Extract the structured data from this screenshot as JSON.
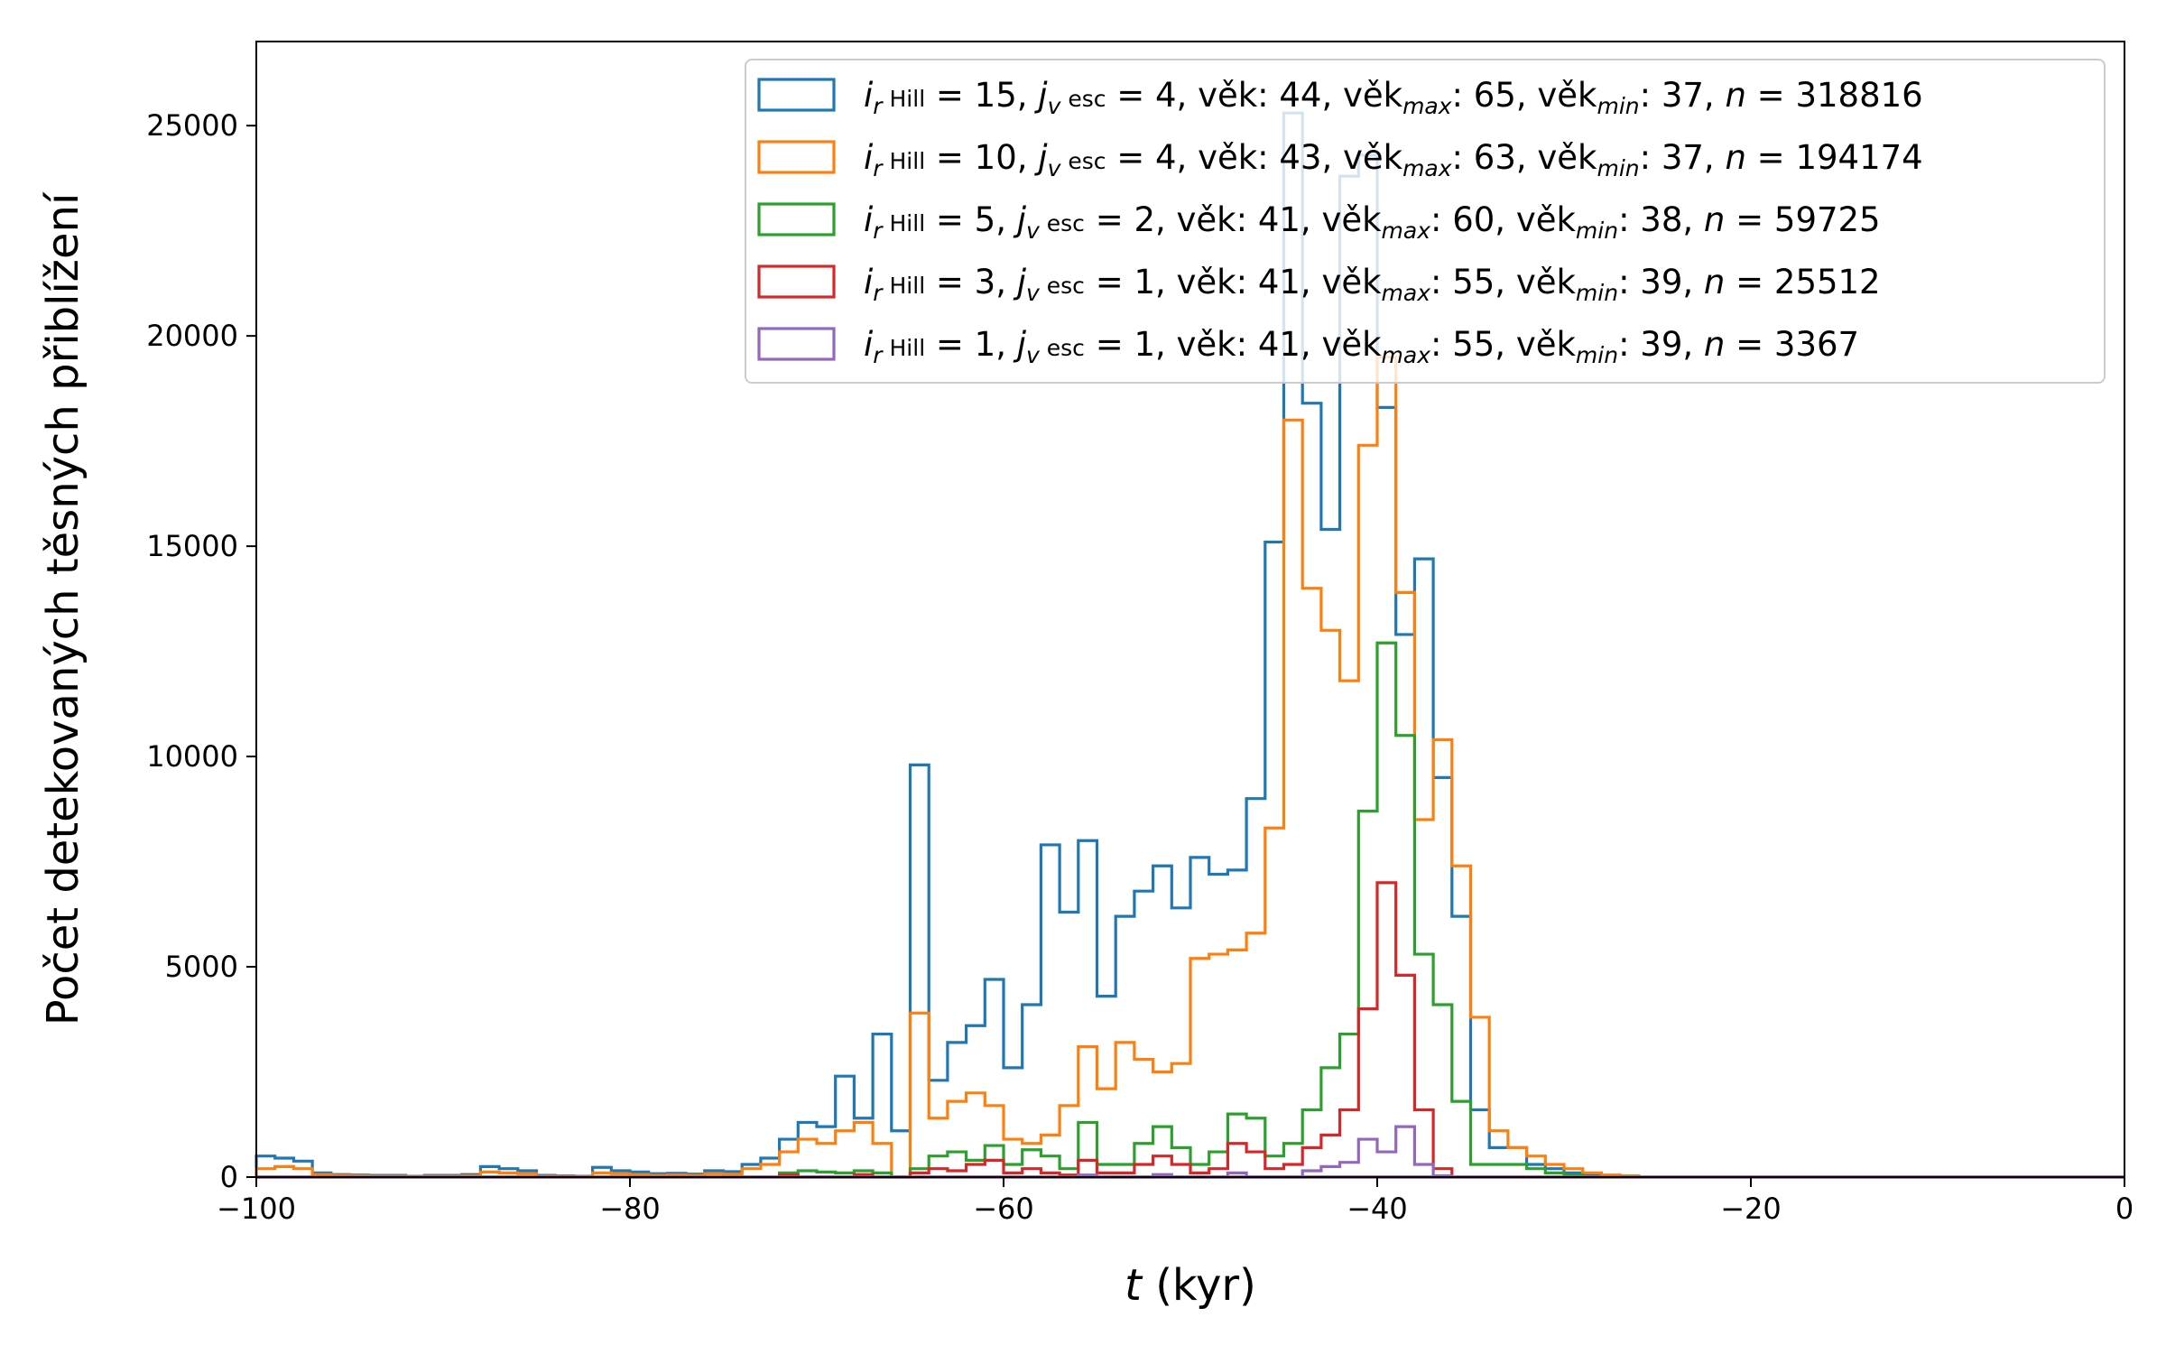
{
  "chart_data": {
    "type": "histogram",
    "xlabel": "t (kyr)",
    "ylabel": "Počet detekovaných těsných přiblížení",
    "xlim": [
      -100,
      0
    ],
    "ylim": [
      0,
      27000
    ],
    "x_ticks": [
      -100,
      -80,
      -60,
      -40,
      -20,
      0
    ],
    "x_tick_labels": [
      "−100",
      "−80",
      "−60",
      "−40",
      "−20",
      "0"
    ],
    "y_ticks": [
      0,
      5000,
      10000,
      15000,
      20000,
      25000
    ],
    "y_tick_labels": [
      "0",
      "5000",
      "10000",
      "15000",
      "20000",
      "25000"
    ],
    "grid": false,
    "legend_position": "top-right",
    "bin_width": 1,
    "series": [
      {
        "name": "i_rHill = 15, j_vesc = 4, věk: 44, věk_max: 65, věk_min: 37, n = 318816",
        "legend": {
          "i": "15",
          "j": "4",
          "vek": "44",
          "vek_max": "65",
          "vek_min": "37",
          "n": "318816"
        },
        "color": "#1f77b4",
        "bins": [
          [
            -100,
            500
          ],
          [
            -99,
            450
          ],
          [
            -98,
            380
          ],
          [
            -97,
            100
          ],
          [
            -96,
            60
          ],
          [
            -95,
            50
          ],
          [
            -94,
            40
          ],
          [
            -93,
            40
          ],
          [
            -92,
            20
          ],
          [
            -91,
            40
          ],
          [
            -90,
            40
          ],
          [
            -89,
            60
          ],
          [
            -88,
            250
          ],
          [
            -87,
            200
          ],
          [
            -86,
            150
          ],
          [
            -85,
            40
          ],
          [
            -84,
            30
          ],
          [
            -83,
            20
          ],
          [
            -82,
            230
          ],
          [
            -81,
            150
          ],
          [
            -80,
            120
          ],
          [
            -79,
            80
          ],
          [
            -78,
            90
          ],
          [
            -77,
            70
          ],
          [
            -76,
            150
          ],
          [
            -75,
            130
          ],
          [
            -74,
            300
          ],
          [
            -73,
            450
          ],
          [
            -72,
            900
          ],
          [
            -71,
            1300
          ],
          [
            -70,
            1200
          ],
          [
            -69,
            2400
          ],
          [
            -68,
            1400
          ],
          [
            -67,
            3400
          ],
          [
            -66,
            1100
          ],
          [
            -65,
            9800
          ],
          [
            -64,
            2300
          ],
          [
            -63,
            3200
          ],
          [
            -62,
            3600
          ],
          [
            -61,
            4700
          ],
          [
            -60,
            2600
          ],
          [
            -59,
            4100
          ],
          [
            -58,
            7900
          ],
          [
            -57,
            6300
          ],
          [
            -56,
            8000
          ],
          [
            -55,
            4300
          ],
          [
            -54,
            6200
          ],
          [
            -53,
            6800
          ],
          [
            -52,
            7400
          ],
          [
            -51,
            6400
          ],
          [
            -50,
            7600
          ],
          [
            -49,
            7200
          ],
          [
            -48,
            7300
          ],
          [
            -47,
            9000
          ],
          [
            -46,
            15100
          ],
          [
            -45,
            25300
          ],
          [
            -44,
            18400
          ],
          [
            -43,
            15400
          ],
          [
            -42,
            23800
          ],
          [
            -41,
            24300
          ],
          [
            -40,
            18300
          ],
          [
            -39,
            12900
          ],
          [
            -38,
            14700
          ],
          [
            -37,
            9500
          ],
          [
            -36,
            6200
          ],
          [
            -35,
            1600
          ],
          [
            -34,
            700
          ],
          [
            -33,
            700
          ],
          [
            -32,
            300
          ],
          [
            -31,
            200
          ],
          [
            -30,
            100
          ],
          [
            -29,
            50
          ],
          [
            -28,
            40
          ],
          [
            -27,
            30
          ]
        ]
      },
      {
        "name": "i_rHill = 10, j_vesc = 4, věk: 43, věk_max: 63, věk_min: 37, n = 194174",
        "legend": {
          "i": "10",
          "j": "4",
          "vek": "43",
          "vek_max": "63",
          "vek_min": "37",
          "n": "194174"
        },
        "color": "#ff7f0e",
        "bins": [
          [
            -100,
            200
          ],
          [
            -99,
            250
          ],
          [
            -98,
            200
          ],
          [
            -97,
            60
          ],
          [
            -96,
            40
          ],
          [
            -95,
            30
          ],
          [
            -94,
            20
          ],
          [
            -93,
            20
          ],
          [
            -92,
            10
          ],
          [
            -91,
            20
          ],
          [
            -90,
            20
          ],
          [
            -89,
            30
          ],
          [
            -88,
            120
          ],
          [
            -87,
            100
          ],
          [
            -86,
            80
          ],
          [
            -85,
            20
          ],
          [
            -84,
            20
          ],
          [
            -83,
            10
          ],
          [
            -82,
            100
          ],
          [
            -81,
            80
          ],
          [
            -80,
            60
          ],
          [
            -79,
            40
          ],
          [
            -78,
            50
          ],
          [
            -77,
            40
          ],
          [
            -76,
            80
          ],
          [
            -75,
            70
          ],
          [
            -74,
            200
          ],
          [
            -73,
            300
          ],
          [
            -72,
            600
          ],
          [
            -71,
            900
          ],
          [
            -70,
            800
          ],
          [
            -69,
            1100
          ],
          [
            -68,
            1300
          ],
          [
            -67,
            800
          ],
          [
            -66,
            0
          ],
          [
            -65,
            3900
          ],
          [
            -64,
            1400
          ],
          [
            -63,
            1800
          ],
          [
            -62,
            2000
          ],
          [
            -61,
            1700
          ],
          [
            -60,
            900
          ],
          [
            -59,
            800
          ],
          [
            -58,
            1000
          ],
          [
            -57,
            1700
          ],
          [
            -56,
            3100
          ],
          [
            -55,
            2100
          ],
          [
            -54,
            3200
          ],
          [
            -53,
            2800
          ],
          [
            -52,
            2500
          ],
          [
            -51,
            2700
          ],
          [
            -50,
            5200
          ],
          [
            -49,
            5300
          ],
          [
            -48,
            5400
          ],
          [
            -47,
            5800
          ],
          [
            -46,
            8300
          ],
          [
            -45,
            18000
          ],
          [
            -44,
            14000
          ],
          [
            -43,
            13000
          ],
          [
            -42,
            11800
          ],
          [
            -41,
            17400
          ],
          [
            -40,
            19500
          ],
          [
            -39,
            13900
          ],
          [
            -38,
            8500
          ],
          [
            -37,
            10400
          ],
          [
            -36,
            7400
          ],
          [
            -35,
            3800
          ],
          [
            -34,
            1100
          ],
          [
            -33,
            700
          ],
          [
            -32,
            500
          ],
          [
            -31,
            300
          ],
          [
            -30,
            200
          ],
          [
            -29,
            100
          ],
          [
            -28,
            50
          ],
          [
            -27,
            30
          ]
        ]
      },
      {
        "name": "i_rHill = 5, j_vesc = 2, věk: 41, věk_max: 60, věk_min: 38, n = 59725",
        "legend": {
          "i": " 5",
          "j": "2",
          "vek": "41",
          "vek_max": "60",
          "vek_min": "38",
          "n": "59725"
        },
        "color": "#2ca02c",
        "bins": [
          [
            -72,
            100
          ],
          [
            -71,
            150
          ],
          [
            -70,
            120
          ],
          [
            -69,
            100
          ],
          [
            -68,
            150
          ],
          [
            -67,
            100
          ],
          [
            -66,
            0
          ],
          [
            -65,
            200
          ],
          [
            -64,
            500
          ],
          [
            -63,
            600
          ],
          [
            -62,
            400
          ],
          [
            -61,
            750
          ],
          [
            -60,
            300
          ],
          [
            -59,
            650
          ],
          [
            -58,
            500
          ],
          [
            -57,
            200
          ],
          [
            -56,
            1300
          ],
          [
            -55,
            300
          ],
          [
            -54,
            300
          ],
          [
            -53,
            800
          ],
          [
            -52,
            1200
          ],
          [
            -51,
            700
          ],
          [
            -50,
            300
          ],
          [
            -49,
            600
          ],
          [
            -48,
            1500
          ],
          [
            -47,
            1400
          ],
          [
            -46,
            500
          ],
          [
            -45,
            800
          ],
          [
            -44,
            1600
          ],
          [
            -43,
            2600
          ],
          [
            -42,
            3400
          ],
          [
            -41,
            8700
          ],
          [
            -40,
            12700
          ],
          [
            -39,
            10500
          ],
          [
            -38,
            5300
          ],
          [
            -37,
            4100
          ],
          [
            -36,
            1800
          ],
          [
            -35,
            300
          ],
          [
            -34,
            300
          ],
          [
            -33,
            300
          ],
          [
            -32,
            200
          ],
          [
            -31,
            100
          ],
          [
            -30,
            50
          ]
        ]
      },
      {
        "name": "i_rHill = 3, j_vesc = 1, věk: 41, věk_max: 55, věk_min: 39, n = 25512",
        "legend": {
          "i": " 3",
          "j": "1",
          "vek": "41",
          "vek_max": "55",
          "vek_min": "39",
          "n": "25512"
        },
        "color": "#d62728",
        "bins": [
          [
            -72,
            50
          ],
          [
            -68,
            60
          ],
          [
            -65,
            100
          ],
          [
            -64,
            200
          ],
          [
            -63,
            150
          ],
          [
            -62,
            300
          ],
          [
            -61,
            400
          ],
          [
            -60,
            100
          ],
          [
            -59,
            200
          ],
          [
            -58,
            100
          ],
          [
            -57,
            50
          ],
          [
            -56,
            400
          ],
          [
            -55,
            100
          ],
          [
            -54,
            100
          ],
          [
            -53,
            300
          ],
          [
            -52,
            500
          ],
          [
            -51,
            300
          ],
          [
            -50,
            100
          ],
          [
            -49,
            200
          ],
          [
            -48,
            800
          ],
          [
            -47,
            600
          ],
          [
            -46,
            200
          ],
          [
            -45,
            300
          ],
          [
            -44,
            700
          ],
          [
            -43,
            1000
          ],
          [
            -42,
            1600
          ],
          [
            -41,
            4000
          ],
          [
            -40,
            7000
          ],
          [
            -39,
            4800
          ],
          [
            -38,
            1600
          ],
          [
            -37,
            200
          ]
        ]
      },
      {
        "name": "i_rHill = 1, j_vesc = 1, věk: 41, věk_max: 55, věk_min: 39, n = 3367",
        "legend": {
          "i": " 1",
          "j": "1",
          "vek": "41",
          "vek_max": "55",
          "vek_min": "39",
          "n": "3367"
        },
        "color": "#9467bd",
        "bins": [
          [
            -56,
            50
          ],
          [
            -52,
            60
          ],
          [
            -48,
            100
          ],
          [
            -44,
            150
          ],
          [
            -43,
            250
          ],
          [
            -42,
            350
          ],
          [
            -41,
            900
          ],
          [
            -40,
            600
          ],
          [
            -39,
            1200
          ],
          [
            -38,
            300
          ],
          [
            -37,
            30
          ]
        ]
      }
    ]
  }
}
